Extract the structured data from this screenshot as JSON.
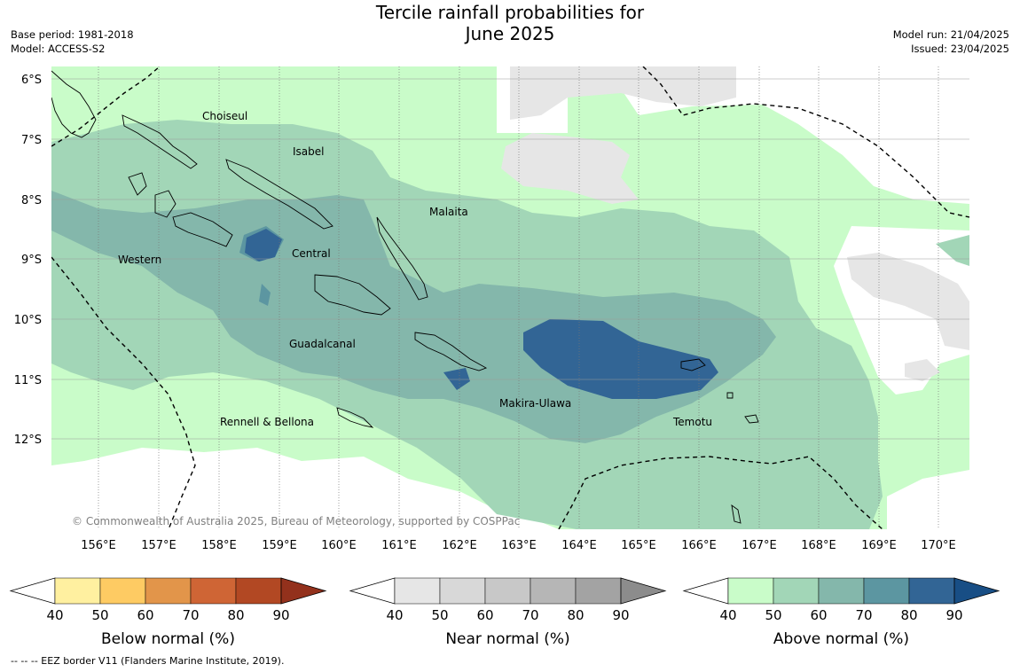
{
  "title_line1": "Tercile rainfall probabilities for",
  "title_line2": "June 2025",
  "base_period": "Base period: 1981-2018",
  "model": "Model: ACCESS-S2",
  "model_run": "Model run: 21/04/2025",
  "issued": "Issued: 23/04/2025",
  "copyright": "© Commonwealth of Australia 2025, Bureau of Meteorology, supported by COSPPac",
  "footnote": "--  --  -- EEZ border V11 (Flanders Marine Institute, 2019).",
  "lat_labels": [
    "6°S",
    "7°S",
    "8°S",
    "9°S",
    "10°S",
    "11°S",
    "12°S"
  ],
  "lon_labels": [
    "156°E",
    "157°E",
    "158°E",
    "159°E",
    "160°E",
    "161°E",
    "162°E",
    "163°E",
    "164°E",
    "165°E",
    "166°E",
    "167°E",
    "168°E",
    "169°E",
    "170°E"
  ],
  "regions": [
    "Choiseul",
    "Isabel",
    "Malaita",
    "Western",
    "Central",
    "Guadalcanal",
    "Makira-Ulawa",
    "Rennell & Bellona",
    "Temotu"
  ],
  "colorbars": [
    {
      "title": "Below normal (%)",
      "ticks": [
        "40",
        "50",
        "60",
        "70",
        "80",
        "90"
      ],
      "colors": [
        "#fff0a0",
        "#fecb63",
        "#e2954a",
        "#cf6535",
        "#b24823",
        "#93311c"
      ]
    },
    {
      "title": "Near normal (%)",
      "ticks": [
        "40",
        "50",
        "60",
        "70",
        "80",
        "90"
      ],
      "colors": [
        "#e6e6e6",
        "#d8d8d8",
        "#c8c8c8",
        "#b6b6b6",
        "#a3a3a3",
        "#8c8c8c"
      ]
    },
    {
      "title": "Above normal (%)",
      "ticks": [
        "40",
        "50",
        "60",
        "70",
        "80",
        "90"
      ],
      "colors": [
        "#c9fcc9",
        "#a2d6b7",
        "#84b7ab",
        "#5c96a1",
        "#326595",
        "#184e85"
      ]
    }
  ]
}
